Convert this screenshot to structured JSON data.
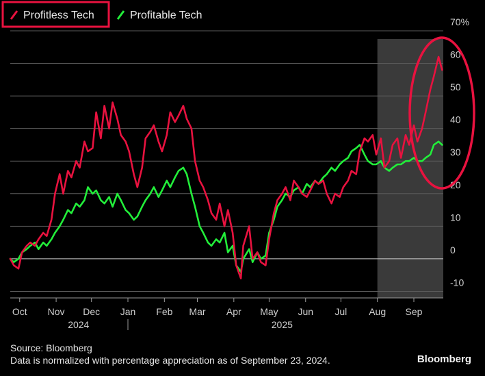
{
  "colors": {
    "profitless": "#e8123f",
    "profitable": "#22ee3a",
    "grid": "#5a5a5a",
    "highlight": "#3a3a3a",
    "annotation": "#e8123f"
  },
  "footer": {
    "source": "Source: Bloomberg",
    "note": "Data is normalized with percentage appreciation as of September 23, 2024.",
    "brand": "Bloomberg"
  },
  "chart_data": {
    "type": "line",
    "title": "",
    "xlabel": "",
    "ylabel": "",
    "y_unit": "%",
    "ylim": [
      -12,
      70
    ],
    "xlim": [
      "2024-09-23",
      "2025-09-26"
    ],
    "y_ticks": [
      70,
      60,
      50,
      40,
      30,
      20,
      10,
      0,
      -10
    ],
    "y_tick_labels": [
      "70%",
      "60",
      "50",
      "40",
      "30",
      "20",
      "10",
      "0",
      "-10"
    ],
    "x_ticks": [
      {
        "label": "Oct",
        "date": "2024-10-01"
      },
      {
        "label": "Nov",
        "date": "2024-11-01"
      },
      {
        "label": "Dec",
        "date": "2024-12-01"
      },
      {
        "label": "Jan",
        "date": "2025-01-01"
      },
      {
        "label": "Feb",
        "date": "2025-02-01"
      },
      {
        "label": "Mar",
        "date": "2025-03-01"
      },
      {
        "label": "Apr",
        "date": "2025-04-01"
      },
      {
        "label": "May",
        "date": "2025-05-01"
      },
      {
        "label": "Jun",
        "date": "2025-06-01"
      },
      {
        "label": "Jul",
        "date": "2025-07-01"
      },
      {
        "label": "Aug",
        "date": "2025-08-01"
      },
      {
        "label": "Sep",
        "date": "2025-09-01"
      }
    ],
    "year_labels": [
      {
        "label": "2024",
        "date": "2024-11-20"
      },
      {
        "label": "2025",
        "date": "2025-05-12"
      }
    ],
    "year_divider_date": "2025-01-01",
    "highlight_range": [
      "2025-08-01",
      "2025-09-26"
    ],
    "grid": true,
    "legend": "top-left",
    "series": [
      {
        "name": "Profitless Tech",
        "x": [
          "2024-09-23",
          "2024-09-26",
          "2024-09-30",
          "2024-10-03",
          "2024-10-07",
          "2024-10-10",
          "2024-10-14",
          "2024-10-17",
          "2024-10-21",
          "2024-10-24",
          "2024-10-28",
          "2024-10-31",
          "2024-11-04",
          "2024-11-07",
          "2024-11-11",
          "2024-11-14",
          "2024-11-18",
          "2024-11-21",
          "2024-11-25",
          "2024-11-28",
          "2024-12-02",
          "2024-12-05",
          "2024-12-09",
          "2024-12-12",
          "2024-12-16",
          "2024-12-19",
          "2024-12-23",
          "2024-12-26",
          "2024-12-30",
          "2025-01-02",
          "2025-01-06",
          "2025-01-09",
          "2025-01-13",
          "2025-01-16",
          "2025-01-20",
          "2025-01-23",
          "2025-01-27",
          "2025-01-30",
          "2025-02-03",
          "2025-02-06",
          "2025-02-10",
          "2025-02-13",
          "2025-02-17",
          "2025-02-20",
          "2025-02-24",
          "2025-02-27",
          "2025-03-03",
          "2025-03-06",
          "2025-03-10",
          "2025-03-13",
          "2025-03-17",
          "2025-03-20",
          "2025-03-24",
          "2025-03-27",
          "2025-03-31",
          "2025-04-03",
          "2025-04-07",
          "2025-04-09",
          "2025-04-14",
          "2025-04-17",
          "2025-04-21",
          "2025-04-24",
          "2025-04-28",
          "2025-05-01",
          "2025-05-05",
          "2025-05-08",
          "2025-05-12",
          "2025-05-15",
          "2025-05-19",
          "2025-05-22",
          "2025-05-26",
          "2025-05-29",
          "2025-06-02",
          "2025-06-05",
          "2025-06-09",
          "2025-06-12",
          "2025-06-16",
          "2025-06-19",
          "2025-06-23",
          "2025-06-26",
          "2025-06-30",
          "2025-07-03",
          "2025-07-07",
          "2025-07-10",
          "2025-07-14",
          "2025-07-17",
          "2025-07-21",
          "2025-07-24",
          "2025-07-28",
          "2025-07-31",
          "2025-08-04",
          "2025-08-07",
          "2025-08-11",
          "2025-08-14",
          "2025-08-18",
          "2025-08-21",
          "2025-08-25",
          "2025-08-28",
          "2025-09-01",
          "2025-09-04",
          "2025-09-08",
          "2025-09-11",
          "2025-09-15",
          "2025-09-18",
          "2025-09-22",
          "2025-09-25"
        ],
        "values": [
          0,
          -2,
          -3,
          2,
          4,
          5,
          4,
          6,
          8,
          7,
          12,
          20,
          26,
          20,
          27,
          25,
          30,
          28,
          36,
          33,
          34,
          45,
          37,
          47,
          40,
          48,
          43,
          38,
          36,
          33,
          26,
          22,
          28,
          37,
          39,
          41,
          36,
          33,
          38,
          45,
          42,
          44,
          47,
          43,
          40,
          30,
          24,
          22,
          18,
          14,
          12,
          17,
          10,
          15,
          8,
          -2,
          -6,
          4,
          10,
          0,
          2,
          -1,
          -2,
          6,
          14,
          18,
          20,
          22,
          18,
          24,
          22,
          20,
          19,
          21,
          24,
          23,
          24,
          20,
          17,
          20,
          19,
          22,
          24,
          27,
          26,
          33,
          37,
          36,
          38,
          32,
          37,
          28,
          30,
          35,
          37,
          31,
          38,
          35,
          41,
          36,
          40,
          45,
          52,
          56,
          62,
          58
        ]
      },
      {
        "name": "Profitable Tech",
        "x": [
          "2024-09-23",
          "2024-09-26",
          "2024-09-30",
          "2024-10-03",
          "2024-10-07",
          "2024-10-10",
          "2024-10-14",
          "2024-10-17",
          "2024-10-21",
          "2024-10-24",
          "2024-10-28",
          "2024-10-31",
          "2024-11-04",
          "2024-11-07",
          "2024-11-11",
          "2024-11-14",
          "2024-11-18",
          "2024-11-21",
          "2024-11-25",
          "2024-11-28",
          "2024-12-02",
          "2024-12-05",
          "2024-12-09",
          "2024-12-12",
          "2024-12-16",
          "2024-12-19",
          "2024-12-23",
          "2024-12-26",
          "2024-12-30",
          "2025-01-02",
          "2025-01-06",
          "2025-01-09",
          "2025-01-13",
          "2025-01-16",
          "2025-01-20",
          "2025-01-23",
          "2025-01-27",
          "2025-01-30",
          "2025-02-03",
          "2025-02-06",
          "2025-02-10",
          "2025-02-13",
          "2025-02-17",
          "2025-02-20",
          "2025-02-24",
          "2025-02-27",
          "2025-03-03",
          "2025-03-06",
          "2025-03-10",
          "2025-03-13",
          "2025-03-17",
          "2025-03-20",
          "2025-03-24",
          "2025-03-27",
          "2025-03-31",
          "2025-04-03",
          "2025-04-07",
          "2025-04-09",
          "2025-04-14",
          "2025-04-17",
          "2025-04-21",
          "2025-04-24",
          "2025-04-28",
          "2025-05-01",
          "2025-05-05",
          "2025-05-08",
          "2025-05-12",
          "2025-05-15",
          "2025-05-19",
          "2025-05-22",
          "2025-05-26",
          "2025-05-29",
          "2025-06-02",
          "2025-06-05",
          "2025-06-09",
          "2025-06-12",
          "2025-06-16",
          "2025-06-19",
          "2025-06-23",
          "2025-06-26",
          "2025-06-30",
          "2025-07-03",
          "2025-07-07",
          "2025-07-10",
          "2025-07-14",
          "2025-07-17",
          "2025-07-21",
          "2025-07-24",
          "2025-07-28",
          "2025-07-31",
          "2025-08-04",
          "2025-08-07",
          "2025-08-11",
          "2025-08-14",
          "2025-08-18",
          "2025-08-21",
          "2025-08-25",
          "2025-08-28",
          "2025-09-01",
          "2025-09-04",
          "2025-09-08",
          "2025-09-11",
          "2025-09-15",
          "2025-09-18",
          "2025-09-22",
          "2025-09-25"
        ],
        "values": [
          0,
          -1,
          0,
          2,
          3,
          4,
          5,
          3,
          5,
          4,
          6,
          8,
          10,
          12,
          15,
          14,
          17,
          16,
          18,
          22,
          20,
          21,
          18,
          17,
          19,
          16,
          20,
          18,
          15,
          14,
          12,
          13,
          16,
          18,
          20,
          22,
          19,
          21,
          24,
          22,
          25,
          27,
          28,
          26,
          20,
          16,
          10,
          8,
          5,
          4,
          6,
          5,
          8,
          2,
          4,
          -2,
          -4,
          0,
          3,
          -1,
          2,
          0,
          1,
          8,
          12,
          16,
          18,
          20,
          19,
          21,
          22,
          20,
          23,
          22,
          24,
          23,
          25,
          26,
          28,
          27,
          29,
          30,
          31,
          33,
          34,
          35,
          32,
          30,
          29,
          29,
          30,
          28,
          27,
          28,
          29,
          29,
          30,
          30,
          31,
          30,
          30,
          31,
          32,
          35,
          36,
          35
        ]
      }
    ]
  }
}
